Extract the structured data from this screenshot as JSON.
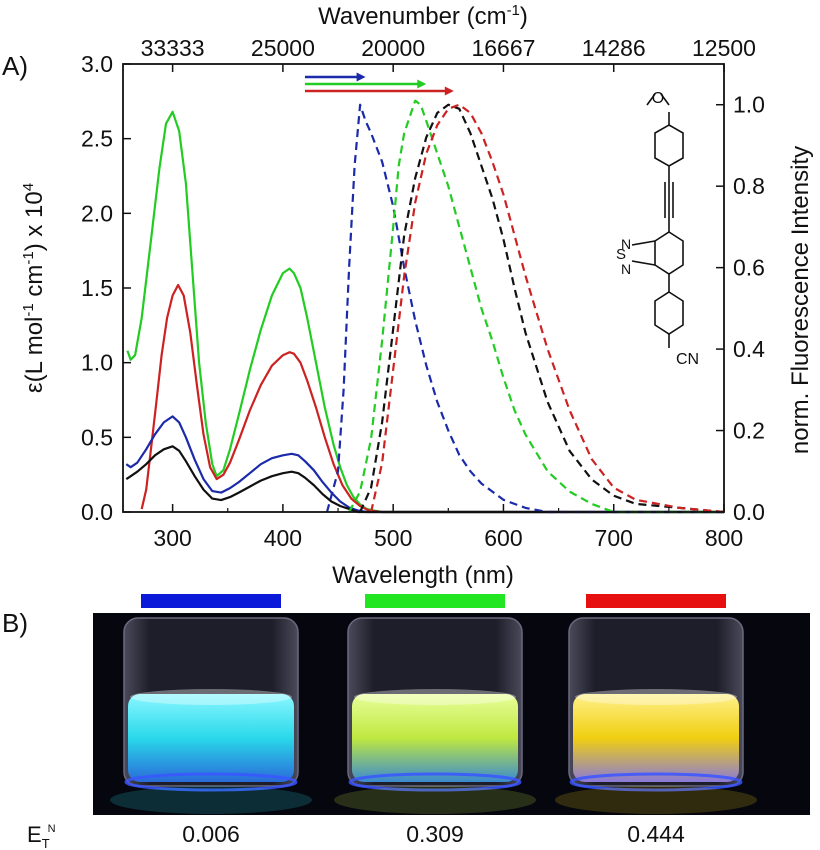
{
  "panel_a_label": "A)",
  "panel_b_label": "B)",
  "chart_data": {
    "type": "line",
    "xlabel": "Wavelength (nm)",
    "x_top_label": {
      "base": "Wavenumber (cm",
      "sup": "-1",
      "close": ")"
    },
    "ylabel_left": {
      "a": "ε(L mol",
      "s1": "-1",
      "b": " cm",
      "s2": "-1",
      "c": ") x 10",
      "s3": "4"
    },
    "ylabel_right": "norm. Fluorescence Intensity",
    "xlim": [
      255,
      800
    ],
    "ylim_left": [
      0,
      3.0
    ],
    "ylim_right": [
      0,
      1.1
    ],
    "x_ticks": [
      300,
      400,
      500,
      600,
      700,
      800
    ],
    "x_tick_labels": [
      "300",
      "400",
      "500",
      "600",
      "700",
      "800"
    ],
    "y_left_ticks": [
      0,
      0.5,
      1.0,
      1.5,
      2.0,
      2.5,
      3.0
    ],
    "y_left_tick_labels": [
      "0.0",
      "0.5",
      "1.0",
      "1.5",
      "2.0",
      "2.5",
      "3.0"
    ],
    "y_right_ticks": [
      0,
      0.2,
      0.4,
      0.6,
      0.8,
      1.0
    ],
    "y_right_tick_labels": [
      "0.0",
      "0.2",
      "0.4",
      "0.6",
      "0.8",
      "1.0"
    ],
    "top_ticks": [
      300,
      400,
      500,
      600,
      700,
      800
    ],
    "top_tick_labels": [
      "33333",
      "25000",
      "20000",
      "16667",
      "14286",
      "12500"
    ],
    "absorption_series": [
      {
        "color": "#22cc22",
        "x": [
          259,
          262,
          266,
          272,
          280,
          288,
          294,
          300,
          306,
          312,
          318,
          324,
          330,
          336,
          340,
          346,
          352,
          360,
          370,
          380,
          390,
          400,
          406,
          410,
          416,
          422,
          430,
          438,
          446,
          452,
          458,
          464,
          470,
          476,
          482,
          490,
          500,
          520,
          560,
          600,
          700,
          800
        ],
        "y": [
          1.08,
          1.02,
          1.05,
          1.3,
          1.8,
          2.3,
          2.6,
          2.68,
          2.55,
          2.2,
          1.6,
          1.0,
          0.6,
          0.32,
          0.24,
          0.28,
          0.42,
          0.65,
          0.95,
          1.22,
          1.45,
          1.6,
          1.63,
          1.6,
          1.5,
          1.3,
          1.0,
          0.7,
          0.45,
          0.3,
          0.18,
          0.1,
          0.05,
          0.02,
          0.01,
          0.0,
          0.0,
          0.0,
          0.0,
          0.0,
          0.0,
          0.0
        ]
      },
      {
        "color": "#cc2222",
        "x": [
          272,
          276,
          280,
          285,
          290,
          295,
          300,
          305,
          310,
          316,
          322,
          328,
          334,
          340,
          346,
          352,
          360,
          370,
          380,
          390,
          400,
          406,
          410,
          416,
          422,
          430,
          438,
          446,
          454,
          462,
          470,
          478,
          490,
          520,
          600,
          800
        ],
        "y": [
          0.02,
          0.15,
          0.4,
          0.72,
          1.05,
          1.3,
          1.45,
          1.52,
          1.45,
          1.2,
          0.85,
          0.52,
          0.3,
          0.22,
          0.25,
          0.33,
          0.48,
          0.68,
          0.85,
          0.98,
          1.05,
          1.07,
          1.06,
          1.0,
          0.88,
          0.7,
          0.5,
          0.32,
          0.18,
          0.09,
          0.04,
          0.01,
          0.0,
          0.0,
          0.0,
          0.0
        ]
      },
      {
        "color": "#1a2aaa",
        "x": [
          258,
          262,
          268,
          276,
          284,
          292,
          300,
          306,
          312,
          320,
          328,
          336,
          344,
          352,
          360,
          370,
          380,
          390,
          400,
          408,
          414,
          420,
          428,
          436,
          444,
          452,
          460,
          468,
          476,
          486,
          500,
          540,
          600,
          800
        ],
        "y": [
          0.32,
          0.3,
          0.33,
          0.42,
          0.52,
          0.6,
          0.64,
          0.6,
          0.5,
          0.35,
          0.22,
          0.14,
          0.13,
          0.16,
          0.2,
          0.26,
          0.32,
          0.36,
          0.38,
          0.39,
          0.38,
          0.34,
          0.28,
          0.2,
          0.13,
          0.07,
          0.03,
          0.01,
          0.0,
          0.0,
          0.0,
          0.0,
          0.0,
          0.0
        ]
      },
      {
        "color": "#111111",
        "x": [
          258,
          262,
          268,
          276,
          284,
          292,
          300,
          306,
          312,
          320,
          328,
          336,
          344,
          352,
          360,
          370,
          380,
          390,
          400,
          408,
          414,
          420,
          428,
          436,
          444,
          452,
          460,
          468,
          476,
          486,
          500,
          540,
          600,
          800
        ],
        "y": [
          0.22,
          0.24,
          0.27,
          0.32,
          0.38,
          0.42,
          0.44,
          0.41,
          0.34,
          0.24,
          0.15,
          0.09,
          0.08,
          0.1,
          0.13,
          0.17,
          0.21,
          0.24,
          0.26,
          0.27,
          0.26,
          0.23,
          0.18,
          0.12,
          0.07,
          0.04,
          0.02,
          0.0,
          0.0,
          0.0,
          0.0,
          0.0,
          0.0,
          0.0
        ]
      }
    ],
    "emission_series": [
      {
        "color": "#1a2aaa",
        "x": [
          440,
          450,
          455,
          460,
          465,
          470,
          475,
          480,
          490,
          500,
          510,
          520,
          530,
          540,
          550,
          560,
          570,
          580,
          590,
          600,
          620,
          640,
          700,
          800
        ],
        "y": [
          0.0,
          0.1,
          0.3,
          0.6,
          0.85,
          1.0,
          0.96,
          0.93,
          0.86,
          0.75,
          0.6,
          0.47,
          0.36,
          0.27,
          0.2,
          0.14,
          0.1,
          0.07,
          0.05,
          0.03,
          0.01,
          0.0,
          0.0,
          0.0
        ]
      },
      {
        "color": "#22cc22",
        "x": [
          460,
          470,
          480,
          490,
          500,
          505,
          510,
          515,
          520,
          525,
          530,
          540,
          550,
          560,
          570,
          580,
          590,
          600,
          610,
          620,
          640,
          660,
          680,
          700,
          800
        ],
        "y": [
          0.0,
          0.05,
          0.18,
          0.42,
          0.7,
          0.85,
          0.93,
          0.97,
          1.01,
          1.0,
          0.96,
          0.88,
          0.8,
          0.7,
          0.6,
          0.5,
          0.42,
          0.33,
          0.25,
          0.19,
          0.1,
          0.05,
          0.02,
          0.0,
          0.0
        ]
      },
      {
        "color": "#111111",
        "x": [
          470,
          480,
          490,
          500,
          510,
          520,
          530,
          540,
          550,
          560,
          570,
          580,
          590,
          600,
          610,
          620,
          640,
          660,
          680,
          700,
          720,
          760,
          800
        ],
        "y": [
          0.0,
          0.06,
          0.22,
          0.45,
          0.68,
          0.82,
          0.92,
          0.98,
          1.0,
          0.99,
          0.93,
          0.85,
          0.77,
          0.67,
          0.55,
          0.44,
          0.27,
          0.15,
          0.08,
          0.04,
          0.02,
          0.01,
          0.0
        ]
      },
      {
        "color": "#cc2222",
        "x": [
          480,
          490,
          500,
          510,
          520,
          530,
          540,
          550,
          560,
          570,
          580,
          590,
          600,
          610,
          620,
          630,
          640,
          660,
          680,
          700,
          720,
          760,
          800
        ],
        "y": [
          0.0,
          0.12,
          0.35,
          0.58,
          0.76,
          0.88,
          0.95,
          0.99,
          1.0,
          0.98,
          0.93,
          0.86,
          0.78,
          0.68,
          0.58,
          0.49,
          0.4,
          0.25,
          0.13,
          0.06,
          0.03,
          0.01,
          0.0
        ]
      }
    ],
    "arrows": [
      {
        "color": "#1a2aaa",
        "from": 420,
        "to": 475
      },
      {
        "color": "#22cc22",
        "from": 420,
        "to": 530
      },
      {
        "color": "#cc2222",
        "from": 420,
        "to": 555
      }
    ]
  },
  "structure_labels": {
    "oxygen": "O",
    "sulfur": "S",
    "nitrogen1": "N",
    "nitrogen2": "N",
    "cyano": "CN"
  },
  "vials": [
    {
      "color_bar": "#0a1ad8",
      "liquid": "#2fe0f0",
      "value": "0.006"
    },
    {
      "color_bar": "#22e622",
      "liquid": "#c8f04a",
      "value": "0.309"
    },
    {
      "color_bar": "#e61010",
      "liquid": "#f2d412",
      "value": "0.444"
    }
  ],
  "et_label": {
    "e": "E",
    "t": "T",
    "n": "N"
  }
}
